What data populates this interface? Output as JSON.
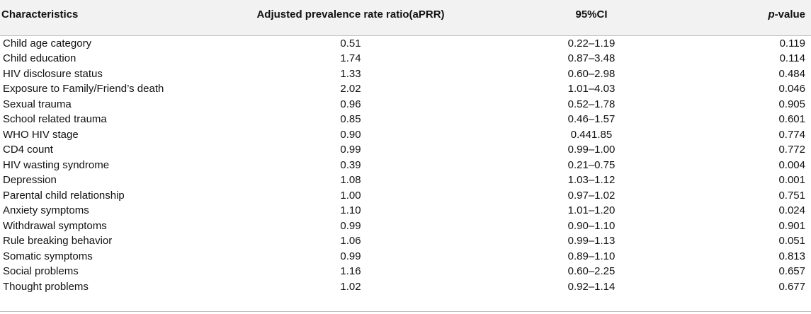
{
  "table": {
    "headers": {
      "characteristics": "Characteristics",
      "aprr": "Adjusted prevalence rate ratio(aPRR)",
      "ci": "95%CI",
      "p_italic": "p",
      "p_rest": "-value"
    },
    "rows": [
      {
        "characteristic": "Child age category",
        "aprr": "0.51",
        "ci": "0.22–1.19",
        "p": "0.119"
      },
      {
        "characteristic": "Child education",
        "aprr": "1.74",
        "ci": "0.87–3.48",
        "p": "0.114"
      },
      {
        "characteristic": "HIV disclosure status",
        "aprr": "1.33",
        "ci": "0.60–2.98",
        "p": "0.484"
      },
      {
        "characteristic": "Exposure to Family/Friend’s death",
        "aprr": "2.02",
        "ci": "1.01–4.03",
        "p": "0.046"
      },
      {
        "characteristic": "Sexual trauma",
        "aprr": "0.96",
        "ci": "0.52–1.78",
        "p": "0.905"
      },
      {
        "characteristic": "School related trauma",
        "aprr": "0.85",
        "ci": "0.46–1.57",
        "p": "0.601"
      },
      {
        "characteristic": "WHO HIV stage",
        "aprr": "0.90",
        "ci": "0.441.85",
        "p": "0.774"
      },
      {
        "characteristic": "CD4 count",
        "aprr": "0.99",
        "ci": "0.99–1.00",
        "p": "0.772"
      },
      {
        "characteristic": "HIV wasting syndrome",
        "aprr": "0.39",
        "ci": "0.21–0.75",
        "p": "0.004"
      },
      {
        "characteristic": "Depression",
        "aprr": "1.08",
        "ci": "1.03–1.12",
        "p": "0.001"
      },
      {
        "characteristic": "Parental child relationship",
        "aprr": "1.00",
        "ci": "0.97–1.02",
        "p": "0.751"
      },
      {
        "characteristic": "Anxiety symptoms",
        "aprr": "1.10",
        "ci": "1.01–1.20",
        "p": "0.024"
      },
      {
        "characteristic": "Withdrawal symptoms",
        "aprr": "0.99",
        "ci": "0.90–1.10",
        "p": "0.901"
      },
      {
        "characteristic": "Rule breaking behavior",
        "aprr": "1.06",
        "ci": "0.99–1.13",
        "p": "0.051"
      },
      {
        "characteristic": "Somatic symptoms",
        "aprr": "0.99",
        "ci": "0.89–1.10",
        "p": "0.813"
      },
      {
        "characteristic": "Social problems",
        "aprr": "1.16",
        "ci": "0.60–2.25",
        "p": "0.657"
      },
      {
        "characteristic": "Thought problems",
        "aprr": "1.02",
        "ci": "0.92–1.14",
        "p": "0.677"
      }
    ]
  }
}
